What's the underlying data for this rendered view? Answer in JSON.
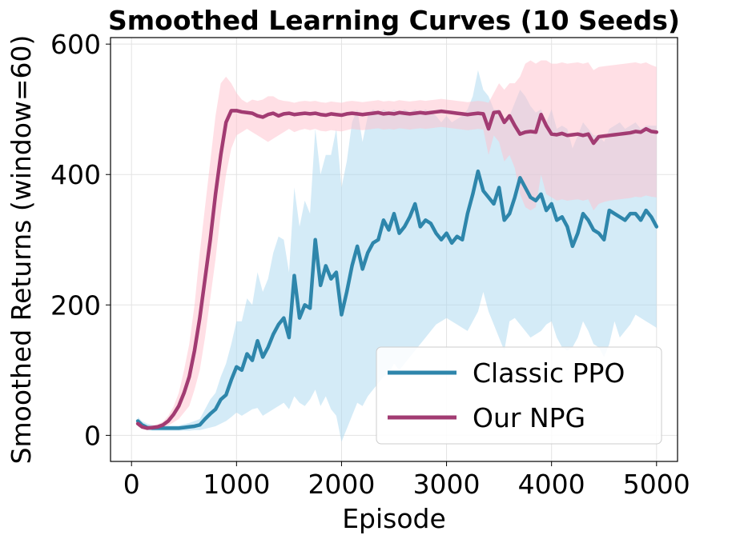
{
  "chart_data": {
    "type": "line",
    "title": "Smoothed Learning Curves (10 Seeds)",
    "xlabel": "Episode",
    "ylabel": "Smoothed Returns (window=60)",
    "xlim": [
      -200,
      5200
    ],
    "ylim": [
      -40,
      610
    ],
    "xticks": [
      0,
      1000,
      2000,
      3000,
      4000,
      5000
    ],
    "yticks": [
      0,
      200,
      400,
      600
    ],
    "grid": true,
    "legend_position": "bottom-right",
    "series": [
      {
        "name": "Classic PPO",
        "color": "#2e86ab",
        "band_color": "#a9d8f0",
        "x": [
          60,
          100,
          150,
          200,
          250,
          300,
          350,
          400,
          450,
          500,
          550,
          600,
          650,
          700,
          750,
          800,
          850,
          900,
          950,
          1000,
          1050,
          1100,
          1150,
          1200,
          1250,
          1300,
          1350,
          1400,
          1450,
          1500,
          1550,
          1600,
          1650,
          1700,
          1750,
          1800,
          1850,
          1900,
          1950,
          2000,
          2050,
          2100,
          2150,
          2200,
          2250,
          2300,
          2350,
          2400,
          2450,
          2500,
          2550,
          2600,
          2650,
          2700,
          2750,
          2800,
          2850,
          2900,
          2950,
          3000,
          3050,
          3100,
          3150,
          3200,
          3250,
          3300,
          3350,
          3400,
          3450,
          3500,
          3550,
          3600,
          3650,
          3700,
          3750,
          3800,
          3850,
          3900,
          3950,
          4000,
          4050,
          4100,
          4150,
          4200,
          4250,
          4300,
          4350,
          4400,
          4450,
          4500,
          4550,
          4600,
          4650,
          4700,
          4750,
          4800,
          4850,
          4900,
          4950,
          5000
        ],
        "y": [
          22,
          16,
          12,
          11,
          11,
          11,
          11,
          11,
          11,
          12,
          13,
          14,
          16,
          25,
          33,
          40,
          55,
          62,
          85,
          105,
          100,
          125,
          115,
          145,
          120,
          135,
          155,
          170,
          180,
          150,
          245,
          180,
          200,
          195,
          300,
          230,
          260,
          240,
          250,
          185,
          220,
          260,
          290,
          255,
          280,
          295,
          300,
          330,
          315,
          340,
          310,
          320,
          335,
          355,
          320,
          330,
          325,
          310,
          300,
          310,
          295,
          305,
          300,
          340,
          370,
          405,
          375,
          365,
          355,
          380,
          330,
          340,
          365,
          395,
          380,
          365,
          360,
          370,
          345,
          355,
          330,
          335,
          320,
          290,
          310,
          340,
          330,
          315,
          310,
          300,
          345,
          340,
          335,
          330,
          340,
          340,
          330,
          345,
          335,
          320
        ],
        "lower": [
          16,
          11,
          8,
          7,
          7,
          7,
          7,
          7,
          7,
          7,
          7,
          8,
          8,
          10,
          12,
          14,
          18,
          22,
          28,
          35,
          30,
          35,
          40,
          42,
          30,
          35,
          40,
          45,
          50,
          40,
          60,
          50,
          45,
          55,
          70,
          45,
          60,
          40,
          30,
          -10,
          10,
          30,
          50,
          45,
          60,
          70,
          80,
          90,
          95,
          110,
          100,
          110,
          120,
          130,
          140,
          150,
          160,
          170,
          175,
          180,
          175,
          170,
          165,
          160,
          175,
          190,
          220,
          190,
          170,
          150,
          130,
          175,
          180,
          170,
          160,
          150,
          155,
          160,
          170,
          175,
          150,
          135,
          130,
          135,
          150,
          175,
          160,
          140,
          135,
          120,
          140,
          175,
          150,
          160,
          170,
          185,
          180,
          175,
          170,
          165
        ],
        "upper": [
          28,
          22,
          18,
          16,
          15,
          15,
          15,
          15,
          15,
          17,
          19,
          22,
          25,
          40,
          55,
          65,
          90,
          110,
          140,
          175,
          175,
          210,
          200,
          250,
          220,
          240,
          280,
          305,
          300,
          250,
          380,
          320,
          360,
          340,
          470,
          400,
          430,
          430,
          470,
          380,
          420,
          480,
          500,
          450,
          490,
          500,
          495,
          500,
          495,
          500,
          495,
          500,
          495,
          500,
          495,
          500,
          495,
          490,
          480,
          490,
          480,
          485,
          490,
          500,
          520,
          560,
          530,
          520,
          500,
          500,
          480,
          490,
          510,
          530,
          520,
          505,
          495,
          500,
          480,
          500,
          470,
          475,
          470,
          440,
          460,
          480,
          470,
          460,
          460,
          450,
          470,
          475,
          480,
          470,
          475,
          480,
          470,
          475,
          475,
          475
        ]
      },
      {
        "name": "Our NPG",
        "color": "#a23b72",
        "band_color": "#ffc0cb",
        "x": [
          60,
          100,
          150,
          200,
          250,
          300,
          350,
          400,
          450,
          500,
          550,
          600,
          650,
          700,
          750,
          800,
          850,
          900,
          950,
          1000,
          1050,
          1100,
          1150,
          1200,
          1250,
          1300,
          1350,
          1400,
          1450,
          1500,
          1550,
          1600,
          1650,
          1700,
          1750,
          1800,
          1850,
          1900,
          1950,
          2000,
          2050,
          2100,
          2150,
          2200,
          2250,
          2300,
          2350,
          2400,
          2450,
          2500,
          2550,
          2600,
          2650,
          2700,
          2750,
          2800,
          2850,
          2900,
          2950,
          3000,
          3050,
          3100,
          3150,
          3200,
          3250,
          3300,
          3350,
          3400,
          3450,
          3500,
          3550,
          3600,
          3650,
          3700,
          3750,
          3800,
          3850,
          3900,
          3950,
          4000,
          4050,
          4100,
          4150,
          4200,
          4250,
          4300,
          4350,
          4400,
          4450,
          4500,
          4550,
          4600,
          4650,
          4700,
          4750,
          4800,
          4850,
          4900,
          4950,
          5000
        ],
        "y": [
          18,
          13,
          11,
          12,
          13,
          16,
          22,
          32,
          45,
          65,
          90,
          130,
          180,
          240,
          300,
          370,
          430,
          480,
          498,
          498,
          496,
          495,
          494,
          490,
          488,
          492,
          494,
          490,
          493,
          494,
          492,
          493,
          494,
          493,
          494,
          492,
          491,
          493,
          492,
          491,
          493,
          494,
          493,
          492,
          493,
          494,
          495,
          493,
          494,
          493,
          495,
          494,
          493,
          494,
          495,
          494,
          495,
          496,
          497,
          496,
          495,
          494,
          493,
          492,
          493,
          494,
          493,
          470,
          495,
          496,
          480,
          490,
          475,
          462,
          465,
          466,
          465,
          492,
          475,
          462,
          461,
          463,
          460,
          461,
          462,
          460,
          462,
          448,
          458,
          459,
          460,
          461,
          462,
          463,
          464,
          466,
          465,
          470,
          466,
          465
        ],
        "lower": [
          14,
          10,
          9,
          9,
          10,
          12,
          15,
          20,
          25,
          35,
          45,
          70,
          100,
          150,
          210,
          270,
          340,
          400,
          440,
          460,
          465,
          470,
          465,
          460,
          455,
          450,
          455,
          460,
          465,
          470,
          465,
          468,
          470,
          468,
          470,
          467,
          466,
          468,
          467,
          466,
          468,
          470,
          469,
          468,
          469,
          470,
          471,
          469,
          470,
          469,
          471,
          470,
          469,
          470,
          471,
          470,
          471,
          472,
          473,
          472,
          471,
          470,
          469,
          468,
          469,
          470,
          469,
          430,
          460,
          450,
          420,
          430,
          410,
          370,
          350,
          345,
          350,
          400,
          370,
          365,
          360,
          362,
          360,
          361,
          362,
          360,
          362,
          345,
          355,
          358,
          360,
          361,
          362,
          363,
          364,
          366,
          365,
          368,
          366,
          365
        ],
        "upper": [
          24,
          17,
          14,
          15,
          17,
          21,
          30,
          44,
          65,
          100,
          140,
          200,
          280,
          350,
          420,
          490,
          540,
          550,
          540,
          525,
          515,
          510,
          515,
          513,
          515,
          520,
          520,
          515,
          513,
          512,
          510,
          512,
          513,
          512,
          513,
          511,
          510,
          512,
          511,
          510,
          512,
          513,
          512,
          511,
          512,
          513,
          514,
          512,
          513,
          512,
          514,
          513,
          512,
          513,
          514,
          513,
          514,
          515,
          516,
          515,
          514,
          513,
          512,
          511,
          512,
          513,
          512,
          510,
          525,
          540,
          530,
          540,
          540,
          550,
          570,
          575,
          570,
          575,
          575,
          570,
          570,
          572,
          570,
          571,
          572,
          570,
          572,
          560,
          565,
          566,
          567,
          568,
          569,
          570,
          571,
          572,
          570,
          572,
          568,
          565
        ]
      }
    ]
  }
}
